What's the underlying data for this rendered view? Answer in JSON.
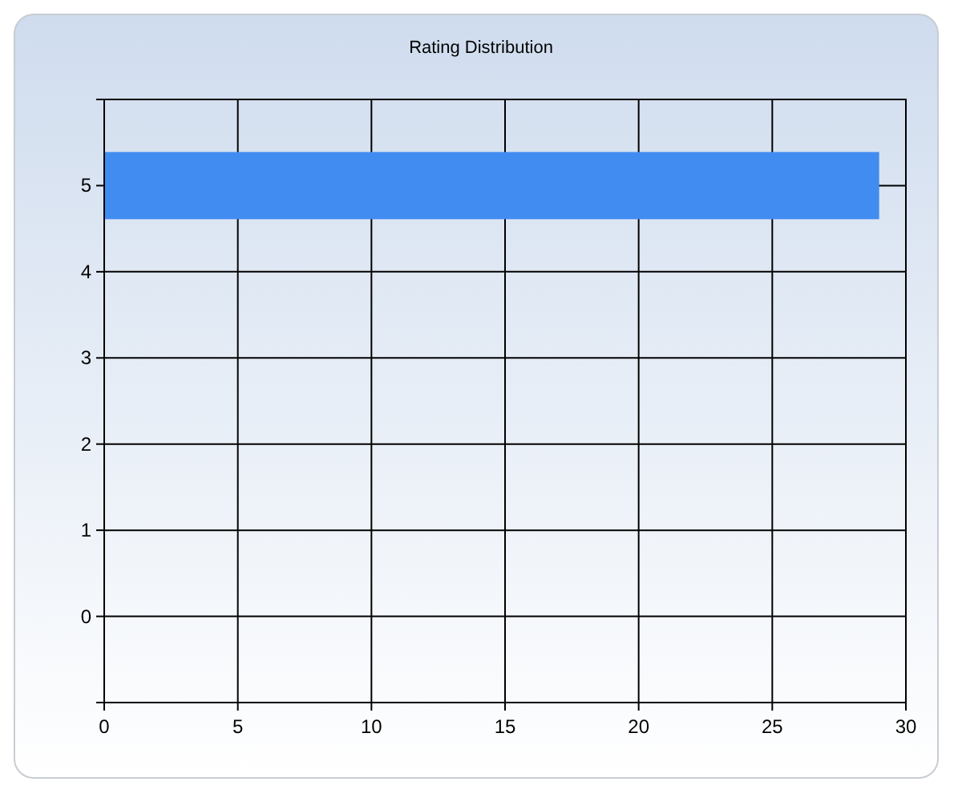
{
  "chart_data": {
    "type": "bar",
    "orientation": "horizontal",
    "title": "Rating Distribution",
    "categories": [
      "5",
      "4",
      "3",
      "2",
      "1",
      "0"
    ],
    "values": [
      29,
      0,
      0,
      0,
      0,
      0
    ],
    "color": "#418cf0",
    "xlim": [
      0,
      30
    ],
    "xticks": [
      0,
      5,
      10,
      15,
      20,
      25,
      30
    ],
    "grid": true
  }
}
